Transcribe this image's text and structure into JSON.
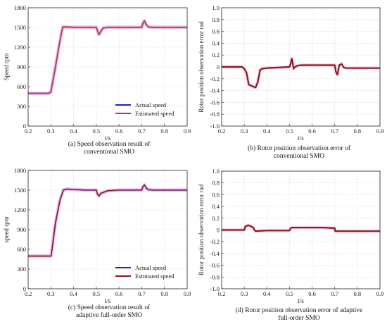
{
  "chart_data": [
    {
      "type": "line",
      "xlabel": "t/s",
      "ylabel": "Speed rpm",
      "xlim": [
        0.2,
        0.9
      ],
      "ylim": [
        0,
        1800
      ],
      "xticks": [
        "0.2",
        "0.3",
        "0.4",
        "0.5",
        "0.6",
        "0.7",
        "0.8",
        "0.9"
      ],
      "yticks": [
        "0",
        "300",
        "600",
        "900",
        "1200",
        "1500",
        "1800"
      ],
      "grid": true,
      "legend": "bottom-right",
      "caption": [
        "(a) Speed observation result of",
        "conventional SMO"
      ],
      "series": [
        {
          "name": "Actual speed",
          "color": "#1f1fd6",
          "x": [
            0.2,
            0.29,
            0.3,
            0.32,
            0.34,
            0.352,
            0.36,
            0.4,
            0.45,
            0.5,
            0.505,
            0.512,
            0.52,
            0.53,
            0.55,
            0.6,
            0.65,
            0.7,
            0.705,
            0.712,
            0.72,
            0.73,
            0.75,
            0.8,
            0.85,
            0.9
          ],
          "y": [
            500,
            500,
            520,
            900,
            1300,
            1500,
            1505,
            1500,
            1500,
            1500,
            1450,
            1390,
            1440,
            1490,
            1500,
            1500,
            1500,
            1500,
            1560,
            1600,
            1540,
            1505,
            1500,
            1500,
            1500,
            1500
          ]
        },
        {
          "name": "Estimated speed",
          "color": "#c0392b",
          "x": [
            0.2,
            0.29,
            0.3,
            0.32,
            0.34,
            0.352,
            0.36,
            0.4,
            0.45,
            0.5,
            0.505,
            0.512,
            0.52,
            0.53,
            0.55,
            0.6,
            0.65,
            0.7,
            0.705,
            0.712,
            0.72,
            0.73,
            0.75,
            0.8,
            0.85,
            0.9
          ],
          "y": [
            495,
            495,
            515,
            895,
            1295,
            1510,
            1512,
            1505,
            1505,
            1505,
            1455,
            1395,
            1445,
            1495,
            1505,
            1505,
            1505,
            1505,
            1565,
            1605,
            1545,
            1510,
            1505,
            1505,
            1505,
            1505
          ]
        }
      ]
    },
    {
      "type": "line",
      "xlabel": "t/s",
      "ylabel": "Rotor position observation error rad",
      "xlim": [
        0.2,
        0.9
      ],
      "ylim": [
        -1,
        1
      ],
      "xticks": [
        "0.2",
        "0.3",
        "0.4",
        "0.5",
        "0.6",
        "0.7",
        "0.8",
        "0.9"
      ],
      "yticks": [
        "-1.0",
        "-0.8",
        "-0.6",
        "-0.4",
        "-0.2",
        "0",
        "0.2",
        "0.4",
        "0.6",
        "0.8",
        "1.0"
      ],
      "grid": true,
      "caption": [
        "(b) Rotor position observation error of",
        "conventional SMO"
      ],
      "series": [
        {
          "color": "#8b1a1a",
          "x": [
            0.2,
            0.29,
            0.3,
            0.31,
            0.32,
            0.35,
            0.36,
            0.37,
            0.38,
            0.4,
            0.45,
            0.5,
            0.505,
            0.51,
            0.513,
            0.518,
            0.525,
            0.535,
            0.55,
            0.6,
            0.65,
            0.7,
            0.705,
            0.712,
            0.72,
            0.73,
            0.74,
            0.75,
            0.8,
            0.85,
            0.9
          ],
          "y": [
            0,
            0,
            -0.03,
            -0.1,
            -0.3,
            -0.35,
            -0.25,
            -0.05,
            -0.03,
            -0.02,
            -0.01,
            0.0,
            0.05,
            0.14,
            0.1,
            -0.03,
            0.0,
            0.02,
            0.03,
            0.03,
            0.03,
            0.03,
            -0.08,
            -0.13,
            0.03,
            0.05,
            -0.01,
            -0.02,
            -0.02,
            -0.02,
            -0.02
          ]
        }
      ]
    },
    {
      "type": "line",
      "xlabel": "t/s",
      "ylabel": "speed rpm",
      "xlim": [
        0.2,
        0.9
      ],
      "ylim": [
        0,
        1800
      ],
      "xticks": [
        "0.2",
        "0.3",
        "0.4",
        "0.5",
        "0.6",
        "0.7",
        "0.8",
        "0.9"
      ],
      "yticks": [
        "0",
        "300",
        "600",
        "900",
        "1200",
        "1500",
        "1800"
      ],
      "grid": true,
      "legend": "bottom-right",
      "caption": [
        "(c) Speed observation result of",
        "adaptive full-order SMO"
      ],
      "series": [
        {
          "name": "Actual speed",
          "color": "#1f1fd6",
          "x": [
            0.2,
            0.3,
            0.302,
            0.32,
            0.34,
            0.355,
            0.37,
            0.4,
            0.45,
            0.5,
            0.505,
            0.512,
            0.52,
            0.55,
            0.6,
            0.65,
            0.7,
            0.705,
            0.712,
            0.72,
            0.73,
            0.75,
            0.8,
            0.85,
            0.9
          ],
          "y": [
            500,
            500,
            520,
            1000,
            1350,
            1500,
            1515,
            1510,
            1500,
            1500,
            1440,
            1410,
            1450,
            1490,
            1500,
            1500,
            1500,
            1550,
            1580,
            1530,
            1505,
            1500,
            1500,
            1500,
            1500
          ]
        },
        {
          "name": "Estimated speed",
          "color": "#8b1a1a",
          "x": [
            0.2,
            0.3,
            0.302,
            0.32,
            0.34,
            0.355,
            0.37,
            0.4,
            0.45,
            0.5,
            0.505,
            0.512,
            0.52,
            0.55,
            0.6,
            0.65,
            0.7,
            0.705,
            0.712,
            0.72,
            0.73,
            0.75,
            0.8,
            0.85,
            0.9
          ],
          "y": [
            495,
            495,
            515,
            995,
            1345,
            1505,
            1518,
            1512,
            1503,
            1503,
            1443,
            1413,
            1453,
            1493,
            1503,
            1503,
            1503,
            1553,
            1583,
            1533,
            1508,
            1503,
            1503,
            1503,
            1503
          ]
        }
      ]
    },
    {
      "type": "line",
      "xlabel": "t/s",
      "ylabel": "Rotor position observation error rad",
      "xlim": [
        0.2,
        0.9
      ],
      "ylim": [
        -1,
        1
      ],
      "xticks": [
        "0.2",
        "0.3",
        "0.4",
        "0.5",
        "0.6",
        "0.7",
        "0.8",
        "0.9"
      ],
      "yticks": [
        "-1.0",
        "-0.8",
        "-0.6",
        "-0.4",
        "-0.2",
        "0",
        "0.2",
        "0.4",
        "0.6",
        "0.8",
        "1.0"
      ],
      "grid": true,
      "caption": [
        "(d) Rotor position observation error of adaptive",
        "full-order SMO"
      ],
      "series": [
        {
          "color": "#8b1a1a",
          "x": [
            0.2,
            0.3,
            0.305,
            0.31,
            0.32,
            0.33,
            0.34,
            0.345,
            0.35,
            0.4,
            0.45,
            0.5,
            0.505,
            0.51,
            0.55,
            0.6,
            0.65,
            0.7,
            0.702,
            0.71,
            0.75,
            0.8,
            0.85,
            0.9
          ],
          "y": [
            0,
            0,
            0.06,
            0.07,
            0.08,
            0.06,
            0.04,
            0.0,
            -0.02,
            -0.01,
            -0.01,
            -0.01,
            0.03,
            0.04,
            0.04,
            0.04,
            0.04,
            0.03,
            -0.02,
            -0.02,
            -0.02,
            -0.02,
            -0.02,
            -0.02
          ]
        }
      ]
    }
  ]
}
